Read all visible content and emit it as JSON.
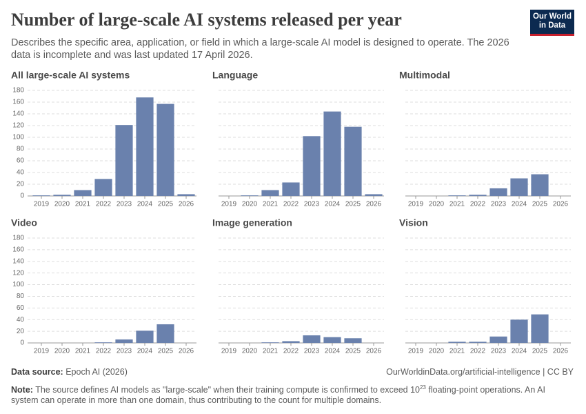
{
  "header": {
    "title": "Number of large-scale AI systems released per year",
    "subtitle": "Describes the specific area, application, or field in which a large-scale AI model is designed to operate. The 2026 data is incomplete and was last updated 17 April 2026.",
    "logo": [
      "Our World",
      "in Data"
    ]
  },
  "chart_data": [
    {
      "type": "bar",
      "title": "All large-scale AI systems",
      "categories": [
        "2019",
        "2020",
        "2021",
        "2022",
        "2023",
        "2024",
        "2025",
        "2026"
      ],
      "values": [
        1,
        2,
        10,
        29,
        121,
        168,
        157,
        3
      ],
      "color": "#6a81ad",
      "ylim": [
        0,
        180
      ],
      "yticks": [
        0,
        20,
        40,
        60,
        80,
        100,
        120,
        140,
        160,
        180
      ],
      "grid": true
    },
    {
      "type": "bar",
      "title": "Language",
      "categories": [
        "2019",
        "2020",
        "2021",
        "2022",
        "2023",
        "2024",
        "2025",
        "2026"
      ],
      "values": [
        0,
        1,
        10,
        23,
        102,
        144,
        118,
        3
      ],
      "color": "#6a81ad",
      "ylim": [
        0,
        180
      ],
      "yticks": [
        0,
        20,
        40,
        60,
        80,
        100,
        120,
        140,
        160,
        180
      ],
      "grid": true
    },
    {
      "type": "bar",
      "title": "Multimodal",
      "categories": [
        "2019",
        "2020",
        "2021",
        "2022",
        "2023",
        "2024",
        "2025",
        "2026"
      ],
      "values": [
        0,
        0,
        1,
        2,
        13,
        30,
        37,
        0
      ],
      "color": "#6a81ad",
      "ylim": [
        0,
        180
      ],
      "yticks": [
        0,
        20,
        40,
        60,
        80,
        100,
        120,
        140,
        160,
        180
      ],
      "grid": true
    },
    {
      "type": "bar",
      "title": "Video",
      "categories": [
        "2019",
        "2020",
        "2021",
        "2022",
        "2023",
        "2024",
        "2025",
        "2026"
      ],
      "values": [
        0,
        0,
        0,
        1,
        6,
        21,
        32,
        0
      ],
      "color": "#6a81ad",
      "ylim": [
        0,
        180
      ],
      "yticks": [
        0,
        20,
        40,
        60,
        80,
        100,
        120,
        140,
        160,
        180
      ],
      "grid": true
    },
    {
      "type": "bar",
      "title": "Image generation",
      "categories": [
        "2019",
        "2020",
        "2021",
        "2022",
        "2023",
        "2024",
        "2025",
        "2026"
      ],
      "values": [
        0,
        0,
        1,
        3,
        13,
        10,
        8,
        0
      ],
      "color": "#6a81ad",
      "ylim": [
        0,
        180
      ],
      "yticks": [
        0,
        20,
        40,
        60,
        80,
        100,
        120,
        140,
        160,
        180
      ],
      "grid": true
    },
    {
      "type": "bar",
      "title": "Vision",
      "categories": [
        "2019",
        "2020",
        "2021",
        "2022",
        "2023",
        "2024",
        "2025",
        "2026"
      ],
      "values": [
        0,
        0,
        2,
        2,
        11,
        40,
        49,
        0
      ],
      "color": "#6a81ad",
      "ylim": [
        0,
        180
      ],
      "yticks": [
        0,
        20,
        40,
        60,
        80,
        100,
        120,
        140,
        160,
        180
      ],
      "grid": true
    }
  ],
  "footer": {
    "source_label": "Data source:",
    "source": "Epoch AI (2026)",
    "url": "OurWorldinData.org/artificial-intelligence | CC BY",
    "note_label": "Note:",
    "note_before": "The source defines AI models as \"large-scale\" when their training compute is confirmed to exceed 10",
    "note_sup": "23",
    "note_after": " floating-point operations. An AI system can operate in more than one domain, thus contributing to the count for multiple domains."
  }
}
